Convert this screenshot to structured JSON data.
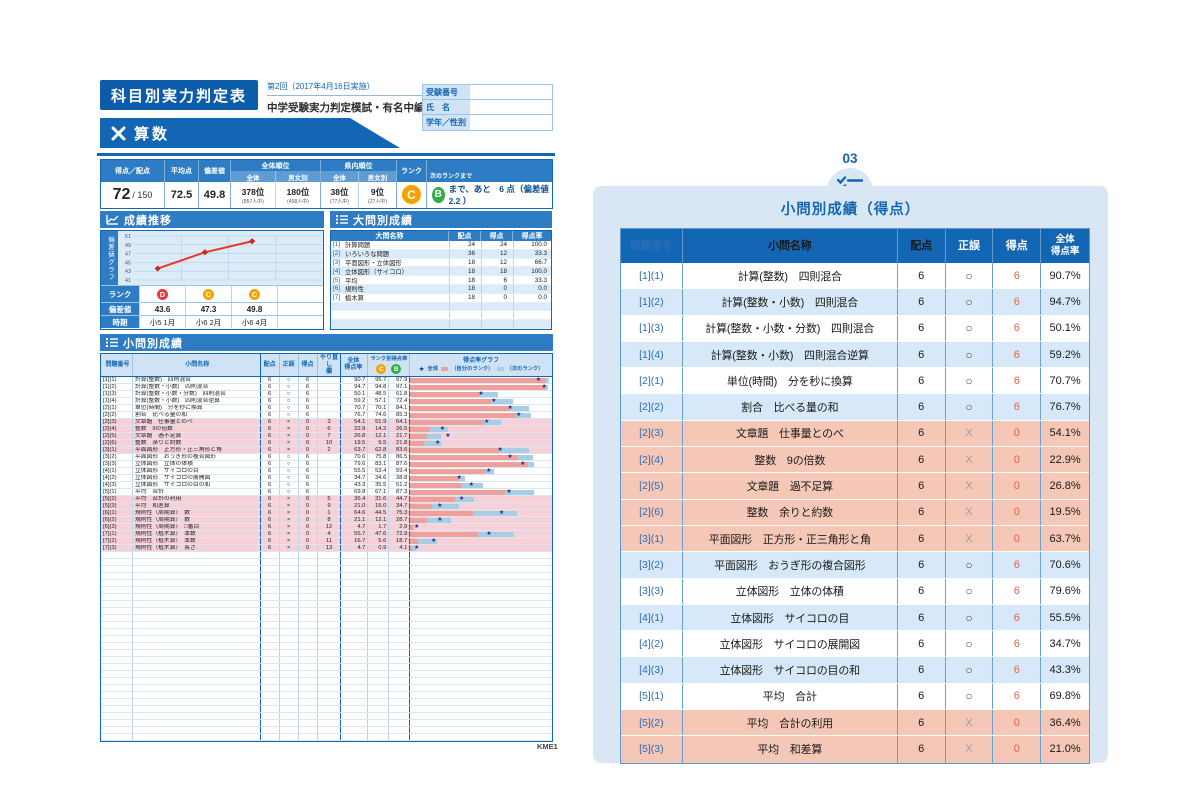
{
  "colors": {
    "primary_blue": "#1266b3",
    "bar_blue": "#2e7cc3",
    "light_blue": "#cfe3f4",
    "panel_bg": "#d9e7f4",
    "row_blue": "#d7e9f8",
    "row_salmon": "#f5c7b7",
    "row_pink": "#f8d0d8",
    "bar_own": "#f0a09a",
    "bar_next": "#a9cde3",
    "star": "#16338e",
    "rank_c": "#f5a200",
    "rank_b": "#2fae46",
    "rank_d": "#e8383d",
    "chart_line": "#e83828",
    "score_red": "#e2604e"
  },
  "report": {
    "title": "科目別実力判定表",
    "session": "第2回（2017年4月16日実施）",
    "exam_name": "中学受験実力判定模試・有名中編",
    "subject": "算数",
    "code": "KME1",
    "student_info": {
      "rows": [
        {
          "label": "受験番号",
          "value": ""
        },
        {
          "label": "氏　名",
          "value": ""
        },
        {
          "label": "学年／性別",
          "value": ""
        }
      ]
    },
    "summary": {
      "headers": {
        "score": "得点／配点",
        "average": "平均点",
        "deviation": "偏差値",
        "overall_rank": "全体順位",
        "pref_rank": "県内順位",
        "zentai": "全体",
        "danjo": "男女別",
        "rank": "ランク",
        "next_rank": "次のランクまで"
      },
      "score_main": "72",
      "score_sub": "/ 150",
      "average": "72.5",
      "deviation": "49.8",
      "overall_ranks": [
        {
          "pos": "378位",
          "of": "(857人中)"
        },
        {
          "pos": "180位",
          "of": "(458人中)"
        }
      ],
      "pref_ranks": [
        {
          "pos": "38位",
          "of": "(77人中)"
        },
        {
          "pos": "9位",
          "of": "(27人中)"
        }
      ],
      "rank": "C",
      "next": {
        "badge": "B",
        "text": "まで、あと　6 点（偏差値　2.2 ）"
      }
    },
    "transition": {
      "title": "成績推移",
      "axis_label": "偏差値グラフ",
      "yticks": [
        51,
        49,
        47,
        45,
        43,
        41
      ],
      "ymin": 41,
      "ymax": 51,
      "row_labels": {
        "rank": "ランク",
        "deviation": "偏差値",
        "period": "時期"
      },
      "points": [
        {
          "rank": "D",
          "rank_color": "#e8383d",
          "deviation": "43.6",
          "period": "小5 1月",
          "value": 43.6
        },
        {
          "rank": "C",
          "rank_color": "#f5a200",
          "deviation": "47.3",
          "period": "小6 2月",
          "value": 47.3
        },
        {
          "rank": "C",
          "rank_color": "#f5a200",
          "deviation": "49.8",
          "period": "小6 4月",
          "value": 49.8
        }
      ],
      "columns": 4
    },
    "major": {
      "title": "大問別成績",
      "headers": {
        "name": "大問名称",
        "haiten": "配点",
        "tokuten": "得点",
        "rate": "得点率"
      },
      "rows": [
        {
          "no": "[1]",
          "name": "計算問題",
          "haiten": "24",
          "tokuten": "24",
          "rate": "100.0"
        },
        {
          "no": "[2]",
          "name": "いろいろな問題",
          "haiten": "36",
          "tokuten": "12",
          "rate": "33.3"
        },
        {
          "no": "[3]",
          "name": "平面図形・立体図形",
          "haiten": "18",
          "tokuten": "12",
          "rate": "66.7"
        },
        {
          "no": "[4]",
          "name": "立体図形（サイコロ）",
          "haiten": "18",
          "tokuten": "18",
          "rate": "100.0"
        },
        {
          "no": "[5]",
          "name": "平均",
          "haiten": "18",
          "tokuten": "6",
          "rate": "33.3"
        },
        {
          "no": "[6]",
          "name": "規則性",
          "haiten": "18",
          "tokuten": "0",
          "rate": "0.0"
        },
        {
          "no": "[7]",
          "name": "植木算",
          "haiten": "18",
          "tokuten": "0",
          "rate": "0.0"
        }
      ],
      "empty_rows": 3
    },
    "detail": {
      "title": "小問別成績",
      "headers": {
        "no": "問題番号",
        "name": "小問名称",
        "haiten": "配点",
        "seigo": "正誤",
        "tokuten": "得点",
        "redo1": "やり直し",
        "redo2": "欄",
        "overall1": "全体",
        "overall2": "得点率",
        "rank_rate": "ランク別得点率",
        "rank_c": "C",
        "rank_b": "B",
        "graph": "得点率グラフ",
        "legend": {
          "star": "★",
          "star_label": "全体",
          "own_label": "（自分のランク）",
          "next_label": "（次のランク）"
        }
      },
      "rows": [
        {
          "no": "[1](1)",
          "name": "計算(整数)　四則混合",
          "haiten": "6",
          "seigo": "○",
          "tokuten": "6",
          "redo": "",
          "overall": "90.7",
          "c": "95.7",
          "b": "97.9"
        },
        {
          "no": "[1](2)",
          "name": "計算(整数・小数)　四則混合",
          "haiten": "6",
          "seigo": "○",
          "tokuten": "6",
          "redo": "",
          "overall": "94.7",
          "c": "94.8",
          "b": "97.1"
        },
        {
          "no": "[1](3)",
          "name": "計算(整数・小数・分数)　四則混合",
          "haiten": "6",
          "seigo": "○",
          "tokuten": "6",
          "redo": "",
          "overall": "50.1",
          "c": "48.5",
          "b": "61.8"
        },
        {
          "no": "[1](4)",
          "name": "計算(整数・小数)　四則混合逆算",
          "haiten": "6",
          "seigo": "○",
          "tokuten": "6",
          "redo": "",
          "overall": "59.2",
          "c": "57.1",
          "b": "72.4"
        },
        {
          "no": "[2](1)",
          "name": "単位(時間)　分を秒に換算",
          "haiten": "6",
          "seigo": "○",
          "tokuten": "6",
          "redo": "",
          "overall": "70.7",
          "c": "70.1",
          "b": "84.1"
        },
        {
          "no": "[2](2)",
          "name": "割合　比べる量の和",
          "haiten": "6",
          "seigo": "○",
          "tokuten": "6",
          "redo": "",
          "overall": "76.7",
          "c": "74.6",
          "b": "85.3"
        },
        {
          "no": "[2](3)",
          "name": "文章題　仕事量とのべ",
          "haiten": "6",
          "seigo": "×",
          "tokuten": "0",
          "redo": "3",
          "overall": "54.1",
          "c": "51.9",
          "b": "64.1"
        },
        {
          "no": "[2](4)",
          "name": "整数　9の倍数",
          "haiten": "6",
          "seigo": "×",
          "tokuten": "0",
          "redo": "6",
          "overall": "22.9",
          "c": "14.2",
          "b": "26.5"
        },
        {
          "no": "[2](5)",
          "name": "文章題　過不足算",
          "haiten": "6",
          "seigo": "×",
          "tokuten": "0",
          "redo": "7",
          "overall": "26.8",
          "c": "12.1",
          "b": "21.7"
        },
        {
          "no": "[2](6)",
          "name": "整数　余りと約数",
          "haiten": "6",
          "seigo": "×",
          "tokuten": "0",
          "redo": "10",
          "overall": "19.5",
          "c": "9.5",
          "b": "21.8"
        },
        {
          "no": "[3](1)",
          "name": "平面図形　正方形・正三角形と角",
          "haiten": "6",
          "seigo": "×",
          "tokuten": "0",
          "redo": "2",
          "overall": "63.7",
          "c": "62.8",
          "b": "83.6"
        },
        {
          "no": "[3](2)",
          "name": "平面図形　おうぎ形の複合図形",
          "haiten": "6",
          "seigo": "○",
          "tokuten": "6",
          "redo": "",
          "overall": "70.6",
          "c": "75.8",
          "b": "86.5"
        },
        {
          "no": "[3](3)",
          "name": "立体図形　立体の体積",
          "haiten": "6",
          "seigo": "○",
          "tokuten": "6",
          "redo": "",
          "overall": "79.6",
          "c": "83.1",
          "b": "87.6"
        },
        {
          "no": "[4](1)",
          "name": "立体図形　サイコロの目",
          "haiten": "6",
          "seigo": "○",
          "tokuten": "6",
          "redo": "",
          "overall": "55.5",
          "c": "53.4",
          "b": "59.4"
        },
        {
          "no": "[4](2)",
          "name": "立体図形　サイコロの展開図",
          "haiten": "6",
          "seigo": "○",
          "tokuten": "6",
          "redo": "",
          "overall": "34.7",
          "c": "34.6",
          "b": "38.8"
        },
        {
          "no": "[4](3)",
          "name": "立体図形　サイコロの目の和",
          "haiten": "6",
          "seigo": "○",
          "tokuten": "6",
          "redo": "",
          "overall": "43.3",
          "c": "35.5",
          "b": "51.2"
        },
        {
          "no": "[5](1)",
          "name": "平均　合計",
          "haiten": "6",
          "seigo": "○",
          "tokuten": "6",
          "redo": "",
          "overall": "69.8",
          "c": "67.1",
          "b": "87.3"
        },
        {
          "no": "[5](2)",
          "name": "平均　合計の利用",
          "haiten": "6",
          "seigo": "×",
          "tokuten": "0",
          "redo": "5",
          "overall": "36.4",
          "c": "31.6",
          "b": "44.7"
        },
        {
          "no": "[5](3)",
          "name": "平均　和差算",
          "haiten": "6",
          "seigo": "×",
          "tokuten": "0",
          "redo": "9",
          "overall": "21.0",
          "c": "15.0",
          "b": "34.7"
        },
        {
          "no": "[6](1)",
          "name": "規則性（周期算）　数",
          "haiten": "6",
          "seigo": "×",
          "tokuten": "0",
          "redo": "1",
          "overall": "64.6",
          "c": "44.5",
          "b": "75.3"
        },
        {
          "no": "[6](2)",
          "name": "規則性（周期算）　数",
          "haiten": "6",
          "seigo": "×",
          "tokuten": "0",
          "redo": "8",
          "overall": "21.1",
          "c": "12.1",
          "b": "28.7"
        },
        {
          "no": "[6](3)",
          "name": "規則性（周期算）　□番目",
          "haiten": "6",
          "seigo": "×",
          "tokuten": "0",
          "redo": "12",
          "overall": "4.7",
          "c": "1.7",
          "b": "2.9"
        },
        {
          "no": "[7](1)",
          "name": "規則性（植木算）　本数",
          "haiten": "6",
          "seigo": "×",
          "tokuten": "0",
          "redo": "4",
          "overall": "55.7",
          "c": "47.6",
          "b": "72.9"
        },
        {
          "no": "[7](2)",
          "name": "規則性（植木算）　本数",
          "haiten": "6",
          "seigo": "×",
          "tokuten": "0",
          "redo": "11",
          "overall": "16.7",
          "c": "5.6",
          "b": "18.7"
        },
        {
          "no": "[7](3)",
          "name": "規則性（植木算）　長さ",
          "haiten": "6",
          "seigo": "×",
          "tokuten": "0",
          "redo": "13",
          "overall": "4.7",
          "c": "0.9",
          "b": "4.1"
        }
      ],
      "empty_rows": 27
    }
  },
  "panel": {
    "number": "03",
    "title": "小問別成績（得点）",
    "headers": {
      "no": "問題番号",
      "name": "小問名称",
      "haiten": "配点",
      "seigo": "正誤",
      "tokuten": "得点",
      "rate1": "全体",
      "rate2": "得点率"
    },
    "rows": [
      {
        "no": "[1](1)",
        "name": "計算(整数)　四則混合",
        "haiten": "6",
        "seigo": "○",
        "tokuten": "6",
        "rate": "90.7%"
      },
      {
        "no": "[1](2)",
        "name": "計算(整数・小数)　四則混合",
        "haiten": "6",
        "seigo": "○",
        "tokuten": "6",
        "rate": "94.7%"
      },
      {
        "no": "[1](3)",
        "name": "計算(整数・小数・分数)　四則混合",
        "haiten": "6",
        "seigo": "○",
        "tokuten": "6",
        "rate": "50.1%"
      },
      {
        "no": "[1](4)",
        "name": "計算(整数・小数)　四則混合逆算",
        "haiten": "6",
        "seigo": "○",
        "tokuten": "6",
        "rate": "59.2%"
      },
      {
        "no": "[2](1)",
        "name": "単位(時間)　分を秒に換算",
        "haiten": "6",
        "seigo": "○",
        "tokuten": "6",
        "rate": "70.7%"
      },
      {
        "no": "[2](2)",
        "name": "割合　比べる量の和",
        "haiten": "6",
        "seigo": "○",
        "tokuten": "6",
        "rate": "76.7%"
      },
      {
        "no": "[2](3)",
        "name": "文章題　仕事量とのべ",
        "haiten": "6",
        "seigo": "X",
        "tokuten": "0",
        "rate": "54.1%"
      },
      {
        "no": "[2](4)",
        "name": "整数　9の倍数",
        "haiten": "6",
        "seigo": "X",
        "tokuten": "0",
        "rate": "22.9%"
      },
      {
        "no": "[2](5)",
        "name": "文章題　過不足算",
        "haiten": "6",
        "seigo": "X",
        "tokuten": "0",
        "rate": "26.8%"
      },
      {
        "no": "[2](6)",
        "name": "整数　余りと約数",
        "haiten": "6",
        "seigo": "X",
        "tokuten": "0",
        "rate": "19.5%"
      },
      {
        "no": "[3](1)",
        "name": "平面図形　正方形・正三角形と角",
        "haiten": "6",
        "seigo": "X",
        "tokuten": "0",
        "rate": "63.7%"
      },
      {
        "no": "[3](2)",
        "name": "平面図形　おうぎ形の複合図形",
        "haiten": "6",
        "seigo": "○",
        "tokuten": "6",
        "rate": "70.6%"
      },
      {
        "no": "[3](3)",
        "name": "立体図形　立体の体積",
        "haiten": "6",
        "seigo": "○",
        "tokuten": "6",
        "rate": "79.6%"
      },
      {
        "no": "[4](1)",
        "name": "立体図形　サイコロの目",
        "haiten": "6",
        "seigo": "○",
        "tokuten": "6",
        "rate": "55.5%"
      },
      {
        "no": "[4](2)",
        "name": "立体図形　サイコロの展開図",
        "haiten": "6",
        "seigo": "○",
        "tokuten": "6",
        "rate": "34.7%"
      },
      {
        "no": "[4](3)",
        "name": "立体図形　サイコロの目の和",
        "haiten": "6",
        "seigo": "○",
        "tokuten": "6",
        "rate": "43.3%"
      },
      {
        "no": "[5](1)",
        "name": "平均　合計",
        "haiten": "6",
        "seigo": "○",
        "tokuten": "6",
        "rate": "69.8%"
      },
      {
        "no": "[5](2)",
        "name": "平均　合計の利用",
        "haiten": "6",
        "seigo": "X",
        "tokuten": "0",
        "rate": "36.4%"
      },
      {
        "no": "[5](3)",
        "name": "平均　和差算",
        "haiten": "6",
        "seigo": "X",
        "tokuten": "0",
        "rate": "21.0%"
      }
    ]
  }
}
